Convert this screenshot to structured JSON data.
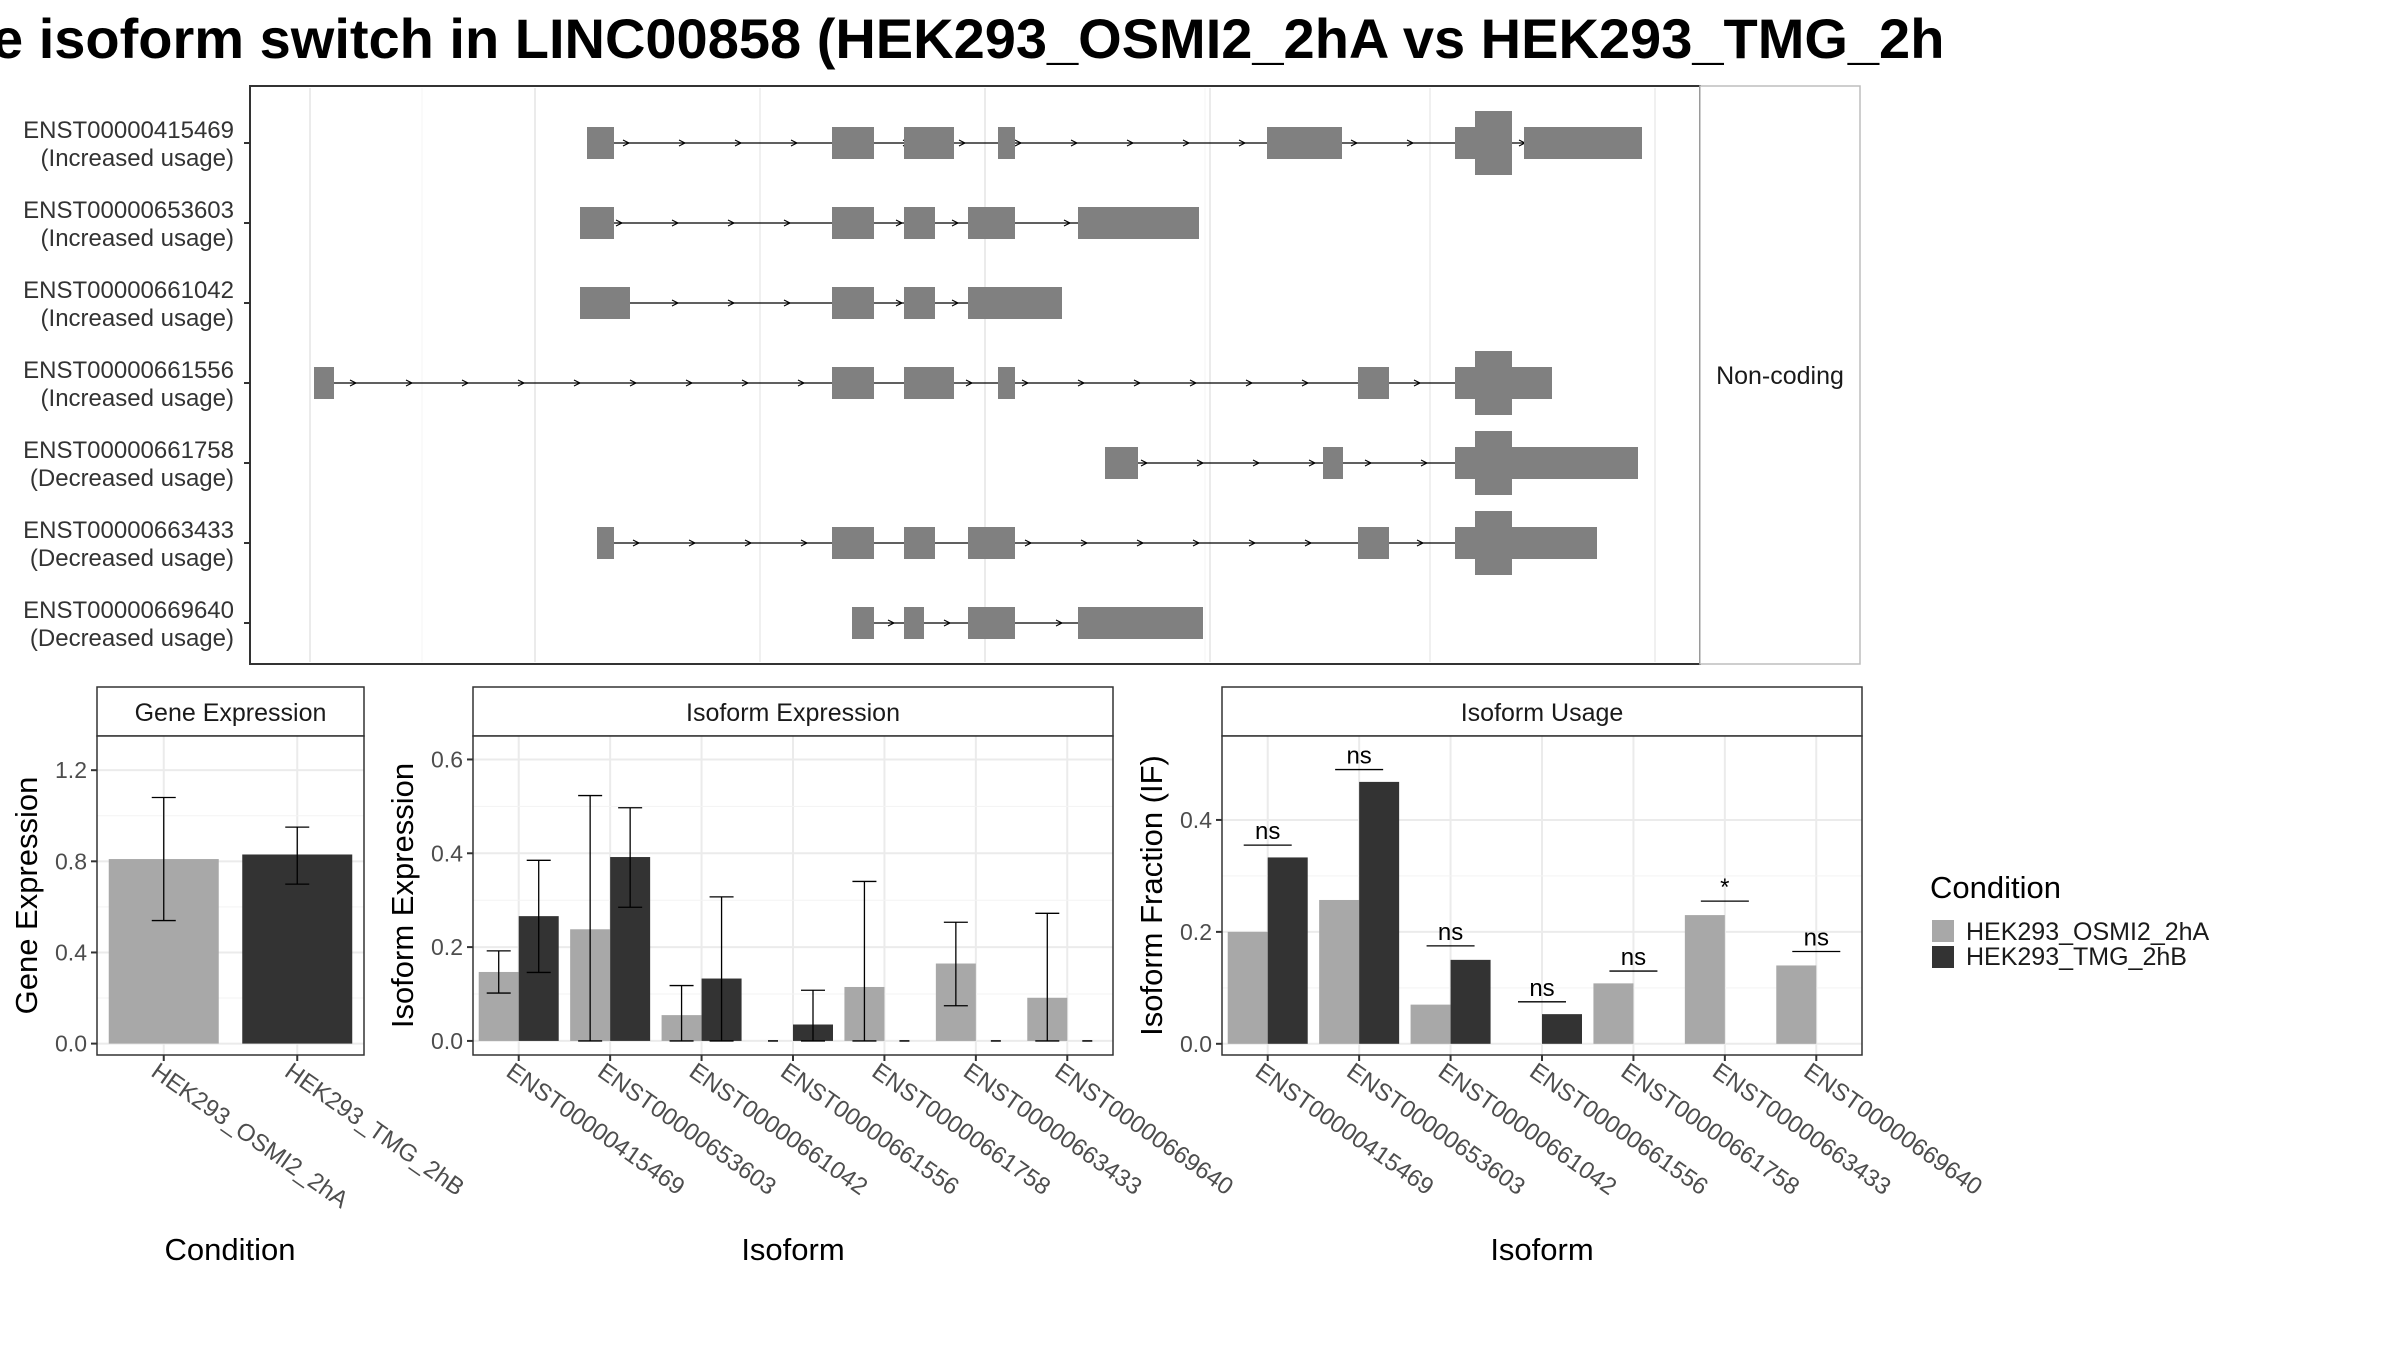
{
  "title": "e isoform switch in LINC00858 (HEK293_OSMI2_2hA vs HEK293_TMG_2h",
  "colors": {
    "cond1": "#a8a8a8",
    "cond2": "#333333",
    "exon": "#808080",
    "grid": "#ebebeb",
    "strip": "#ffffff",
    "axis": "#333333"
  },
  "structure": {
    "coding_label": "Non-coding",
    "isoforms": [
      {
        "id": "ENST00000415469",
        "usage": "(Increased usage)"
      },
      {
        "id": "ENST00000653603",
        "usage": "(Increased usage)"
      },
      {
        "id": "ENST00000661042",
        "usage": "(Increased usage)"
      },
      {
        "id": "ENST00000661556",
        "usage": "(Increased usage)"
      },
      {
        "id": "ENST00000661758",
        "usage": "(Decreased usage)"
      },
      {
        "id": "ENST00000663433",
        "usage": "(Decreased usage)"
      },
      {
        "id": "ENST00000669640",
        "usage": "(Decreased usage)"
      }
    ]
  },
  "legend": {
    "title": "Condition",
    "items": [
      {
        "label": "HEK293_OSMI2_2hA",
        "color": "#a8a8a8"
      },
      {
        "label": "HEK293_TMG_2hB",
        "color": "#333333"
      }
    ]
  },
  "chart_data": [
    {
      "type": "bar",
      "panel": "Gene Expression",
      "xlabel": "Condition",
      "ylabel": "Gene Expression",
      "ylim": [
        -0.05,
        1.35
      ],
      "yticks": [
        0.0,
        0.4,
        0.8,
        1.2
      ],
      "ytick_labels": [
        "0.0",
        "0.4",
        "0.8",
        "1.2"
      ],
      "categories": [
        "HEK293_OSMI2_2hA",
        "HEK293_TMG_2hB"
      ],
      "values": [
        0.81,
        0.83
      ],
      "err_low": [
        0.54,
        0.7
      ],
      "err_high": [
        1.08,
        0.95
      ],
      "grid": true
    },
    {
      "type": "bar",
      "panel": "Isoform Expression",
      "xlabel": "Isoform",
      "ylabel": "Isoform Expression",
      "ylim": [
        -0.03,
        0.65
      ],
      "yticks": [
        0.0,
        0.2,
        0.4,
        0.6
      ],
      "ytick_labels": [
        "0.0",
        "0.2",
        "0.4",
        "0.6"
      ],
      "categories": [
        "ENST00000415469",
        "ENST00000653603",
        "ENST00000661042",
        "ENST00000661556",
        "ENST00000661758",
        "ENST00000663433",
        "ENST00000669640"
      ],
      "series": [
        {
          "name": "HEK293_OSMI2_2hA",
          "values": [
            0.147,
            0.238,
            0.055,
            0.0,
            0.115,
            0.165,
            0.092
          ],
          "err_low": [
            0.102,
            0.0,
            0.0,
            0.0,
            0.0,
            0.075,
            0.0
          ],
          "err_high": [
            0.192,
            0.523,
            0.118,
            0.0,
            0.34,
            0.253,
            0.272
          ]
        },
        {
          "name": "HEK293_TMG_2hB",
          "values": [
            0.266,
            0.392,
            0.133,
            0.035,
            0.0,
            0.0,
            0.0
          ],
          "err_low": [
            0.146,
            0.285,
            0.0,
            0.0,
            0.0,
            0.0,
            0.0
          ],
          "err_high": [
            0.385,
            0.497,
            0.307,
            0.108,
            0.0,
            0.0,
            0.0
          ]
        }
      ],
      "grid": true
    },
    {
      "type": "bar",
      "panel": "Isoform Usage",
      "xlabel": "Isoform",
      "ylabel": "Isoform Fraction (IF)",
      "ylim": [
        -0.02,
        0.55
      ],
      "yticks": [
        0.0,
        0.2,
        0.4
      ],
      "ytick_labels": [
        "0.0",
        "0.2",
        "0.4"
      ],
      "categories": [
        "ENST00000415469",
        "ENST00000653603",
        "ENST00000661042",
        "ENST00000661556",
        "ENST00000661758",
        "ENST00000663433",
        "ENST00000669640"
      ],
      "series": [
        {
          "name": "HEK293_OSMI2_2hA",
          "values": [
            0.2,
            0.257,
            0.07,
            0.0,
            0.108,
            0.23,
            0.14
          ]
        },
        {
          "name": "HEK293_TMG_2hB",
          "values": [
            0.333,
            0.468,
            0.15,
            0.053,
            0.0,
            0.0,
            0.0
          ]
        }
      ],
      "significance": [
        "ns",
        "ns",
        "ns",
        "ns",
        "ns",
        "*",
        "ns"
      ],
      "sig_y": [
        0.355,
        0.49,
        0.175,
        0.075,
        0.13,
        0.255,
        0.165
      ],
      "grid": true
    }
  ]
}
